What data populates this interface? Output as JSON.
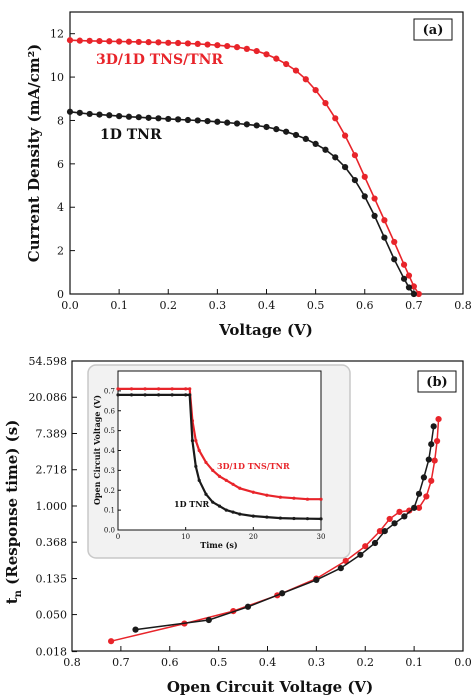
{
  "chart_data": [
    {
      "panel": "(a)",
      "type": "line",
      "xlabel": "Voltage (V)",
      "ylabel": "Current Density (mA/cm²)",
      "xlim": [
        0.0,
        0.8
      ],
      "ylim": [
        0,
        13
      ],
      "xticks": [
        "0.0",
        "0.1",
        "0.2",
        "0.3",
        "0.4",
        "0.5",
        "0.6",
        "0.7",
        "0.8"
      ],
      "yticks": [
        "0",
        "2",
        "4",
        "6",
        "8",
        "10",
        "12"
      ],
      "series": [
        {
          "name": "3D/1D TNS/TNR",
          "color": "#e8242a",
          "x": [
            0.0,
            0.02,
            0.04,
            0.06,
            0.08,
            0.1,
            0.12,
            0.14,
            0.16,
            0.18,
            0.2,
            0.22,
            0.24,
            0.26,
            0.28,
            0.3,
            0.32,
            0.34,
            0.36,
            0.38,
            0.4,
            0.42,
            0.44,
            0.46,
            0.48,
            0.5,
            0.52,
            0.54,
            0.56,
            0.58,
            0.6,
            0.62,
            0.64,
            0.66,
            0.68,
            0.69,
            0.7,
            0.71
          ],
          "y": [
            11.7,
            11.68,
            11.67,
            11.66,
            11.65,
            11.64,
            11.63,
            11.62,
            11.61,
            11.6,
            11.58,
            11.57,
            11.55,
            11.53,
            11.5,
            11.47,
            11.43,
            11.38,
            11.3,
            11.2,
            11.05,
            10.85,
            10.6,
            10.3,
            9.9,
            9.4,
            8.8,
            8.1,
            7.3,
            6.4,
            5.4,
            4.4,
            3.4,
            2.4,
            1.35,
            0.85,
            0.35,
            0.0
          ]
        },
        {
          "name": "1D TNR",
          "color": "#1a1a1a",
          "x": [
            0.0,
            0.02,
            0.04,
            0.06,
            0.08,
            0.1,
            0.12,
            0.14,
            0.16,
            0.18,
            0.2,
            0.22,
            0.24,
            0.26,
            0.28,
            0.3,
            0.32,
            0.34,
            0.36,
            0.38,
            0.4,
            0.42,
            0.44,
            0.46,
            0.48,
            0.5,
            0.52,
            0.54,
            0.56,
            0.58,
            0.6,
            0.62,
            0.64,
            0.66,
            0.68,
            0.69,
            0.7
          ],
          "y": [
            8.4,
            8.35,
            8.3,
            8.27,
            8.24,
            8.2,
            8.17,
            8.15,
            8.12,
            8.1,
            8.07,
            8.05,
            8.02,
            8.0,
            7.97,
            7.94,
            7.9,
            7.86,
            7.82,
            7.77,
            7.7,
            7.6,
            7.48,
            7.33,
            7.15,
            6.92,
            6.65,
            6.3,
            5.85,
            5.25,
            4.5,
            3.6,
            2.6,
            1.6,
            0.7,
            0.3,
            0.0
          ]
        }
      ],
      "annotations": [
        "3D/1D TNS/TNR",
        "1D TNR"
      ],
      "grid": false
    },
    {
      "panel": "(b)",
      "type": "line",
      "xlabel": "Open Circuit Voltage (V)",
      "ylabel": "t_n (Response time) (s)",
      "yscale": "log",
      "xlim": [
        0.8,
        0.0
      ],
      "ylim": [
        0.0183,
        54.598
      ],
      "xticks": [
        "0.8",
        "0.7",
        "0.6",
        "0.5",
        "0.4",
        "0.3",
        "0.2",
        "0.1",
        "0.0"
      ],
      "yticks": [
        "0.018",
        "0.050",
        "0.135",
        "0.368",
        "1.000",
        "2.718",
        "7.389",
        "20.086",
        "54.598"
      ],
      "series": [
        {
          "name": "3D/1D TNS/TNR",
          "color": "#e8242a",
          "x": [
            0.72,
            0.57,
            0.47,
            0.38,
            0.3,
            0.24,
            0.2,
            0.17,
            0.15,
            0.13,
            0.11,
            0.09,
            0.075,
            0.065,
            0.058,
            0.053,
            0.05
          ],
          "y": [
            0.024,
            0.039,
            0.055,
            0.085,
            0.135,
            0.22,
            0.33,
            0.5,
            0.7,
            0.85,
            0.88,
            0.95,
            1.3,
            2.0,
            3.5,
            6.0,
            11.0
          ]
        },
        {
          "name": "1D TNR",
          "color": "#1a1a1a",
          "x": [
            0.67,
            0.52,
            0.44,
            0.37,
            0.3,
            0.25,
            0.21,
            0.18,
            0.16,
            0.14,
            0.12,
            0.1,
            0.09,
            0.08,
            0.07,
            0.065,
            0.06
          ],
          "y": [
            0.033,
            0.043,
            0.062,
            0.09,
            0.13,
            0.18,
            0.26,
            0.36,
            0.5,
            0.62,
            0.75,
            0.95,
            1.4,
            2.2,
            3.6,
            5.5,
            9.0
          ]
        }
      ],
      "inset": {
        "type": "line",
        "xlabel": "Time (s)",
        "ylabel": "Open Circuit Voltage (V)",
        "xlim": [
          0,
          30
        ],
        "ylim": [
          0.0,
          0.8
        ],
        "xticks": [
          "0",
          "10",
          "20",
          "30"
        ],
        "yticks": [
          "0.0",
          "0.1",
          "0.2",
          "0.3",
          "0.4",
          "0.5",
          "0.6",
          "0.7"
        ],
        "series": [
          {
            "name": "3D/1D TNS/TNR",
            "color": "#e8242a",
            "x": [
              0,
              2,
              4,
              6,
              8,
              10,
              10.6,
              11,
              11.5,
              12,
              13,
              14,
              15,
              16,
              17,
              18,
              20,
              22,
              24,
              26,
              28,
              30
            ],
            "y": [
              0.71,
              0.71,
              0.71,
              0.71,
              0.71,
              0.71,
              0.71,
              0.55,
              0.45,
              0.4,
              0.34,
              0.3,
              0.27,
              0.25,
              0.23,
              0.21,
              0.19,
              0.175,
              0.165,
              0.16,
              0.155,
              0.155
            ]
          },
          {
            "name": "1D TNR",
            "color": "#1a1a1a",
            "x": [
              0,
              2,
              4,
              6,
              8,
              10,
              10.6,
              11,
              11.5,
              12,
              13,
              14,
              15,
              16,
              17,
              18,
              20,
              22,
              24,
              26,
              28,
              30
            ],
            "y": [
              0.68,
              0.68,
              0.68,
              0.68,
              0.68,
              0.68,
              0.68,
              0.45,
              0.32,
              0.25,
              0.18,
              0.14,
              0.12,
              0.1,
              0.09,
              0.08,
              0.07,
              0.065,
              0.06,
              0.058,
              0.057,
              0.056
            ]
          }
        ],
        "annotations": [
          "3D/1D TNS/TNR",
          "1D TNR"
        ]
      }
    }
  ]
}
